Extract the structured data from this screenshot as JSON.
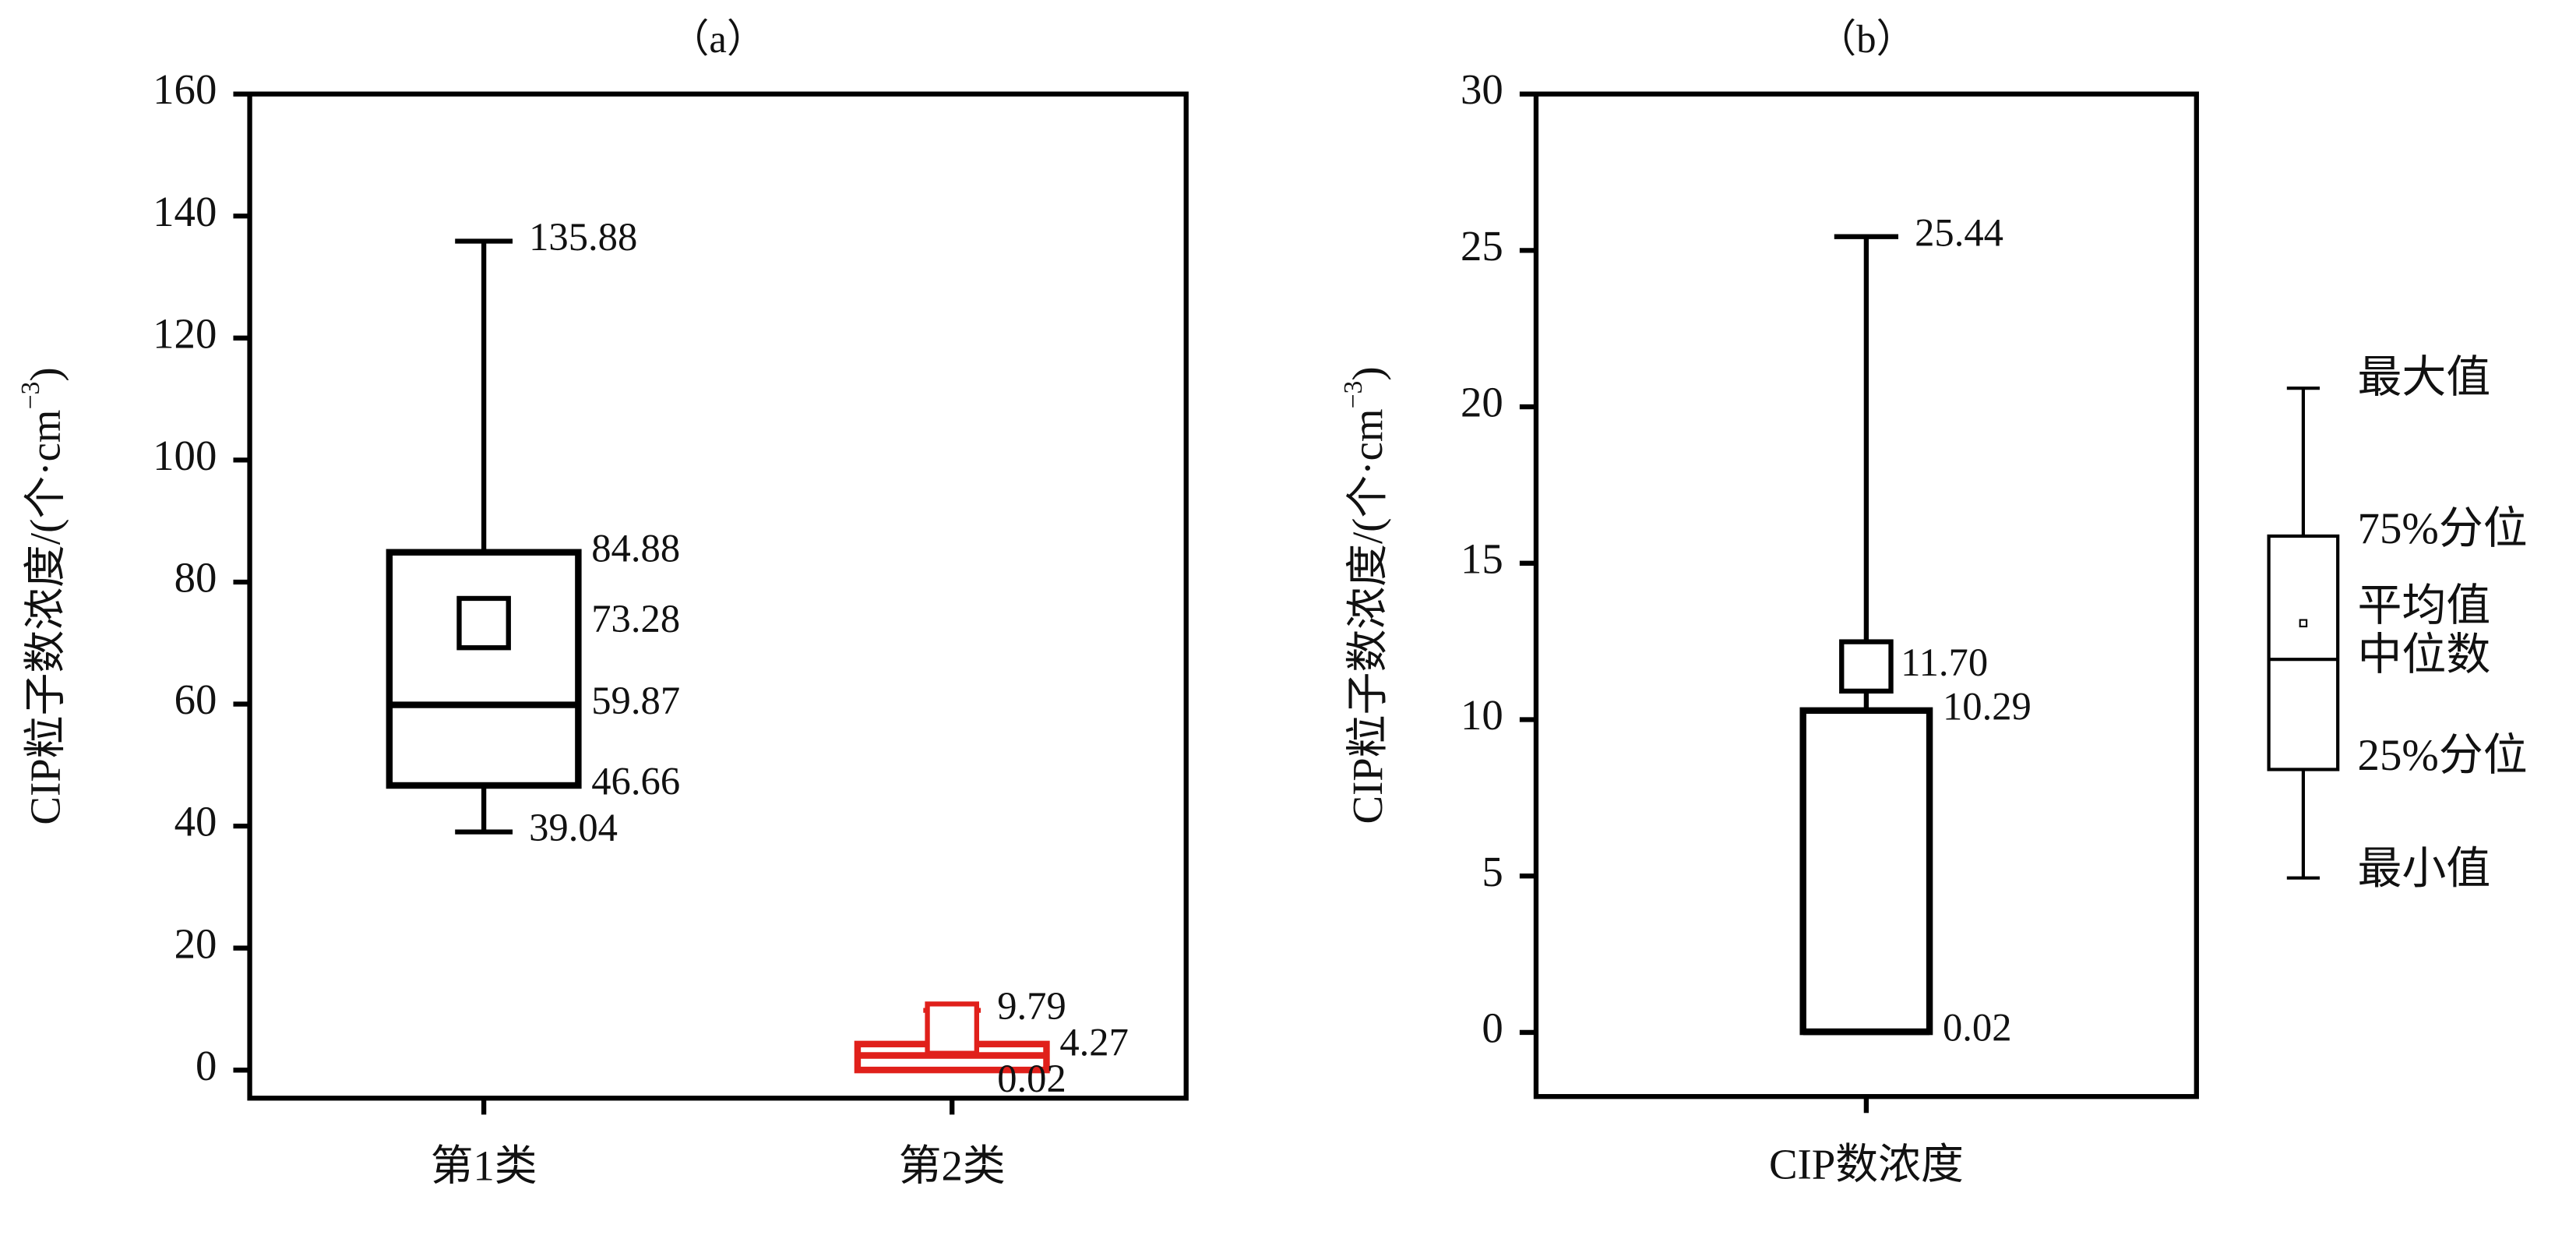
{
  "chart_data": [
    {
      "type": "box",
      "title": "（a）",
      "ylabel": "CIP粒子数浓度/(个·cm",
      "ylabel_exp": "−3",
      "ylabel_close": ")",
      "ylim": [
        -4.6,
        160
      ],
      "yticks": [
        0,
        20,
        40,
        60,
        80,
        100,
        120,
        140,
        160
      ],
      "categories": [
        "第1类",
        "第2类"
      ],
      "boxes": [
        {
          "color": "#000000",
          "min": 39.04,
          "q1": 46.66,
          "median": 59.87,
          "q3": 84.88,
          "max": 135.88,
          "mean": 73.28,
          "value_labels": {
            "max": "135.88",
            "q3": "84.88",
            "mean": "73.28",
            "median": "59.87",
            "q1": "46.66",
            "min": "39.04"
          }
        },
        {
          "color": "#e0201b",
          "min": 0.02,
          "q1": 0.02,
          "median": 2.4,
          "q3": 4.27,
          "max": 9.79,
          "mean": 6.8,
          "value_labels": {
            "max": "9.79",
            "q3": "4.27",
            "min": "0.02"
          }
        }
      ]
    },
    {
      "type": "box",
      "title": "（b）",
      "ylabel": "CIP粒子数浓度/(个·cm",
      "ylabel_exp": "−3",
      "ylabel_close": ")",
      "ylim": [
        -2.05,
        30
      ],
      "yticks": [
        0,
        5,
        10,
        15,
        20,
        25,
        30
      ],
      "categories": [
        "CIP数浓度"
      ],
      "boxes": [
        {
          "color": "#000000",
          "min": 0.02,
          "q1": 0.02,
          "median": 0.02,
          "q3": 10.29,
          "max": 25.44,
          "mean": 11.7,
          "value_labels": {
            "max": "25.44",
            "mean": "11.70",
            "q3": "10.29",
            "q1": "0.02"
          }
        }
      ],
      "legend": {
        "max": "最大值",
        "q3": "75%分位",
        "mean": "平均值",
        "median": "中位数",
        "q1": "25%分位",
        "min": "最小值"
      }
    }
  ]
}
